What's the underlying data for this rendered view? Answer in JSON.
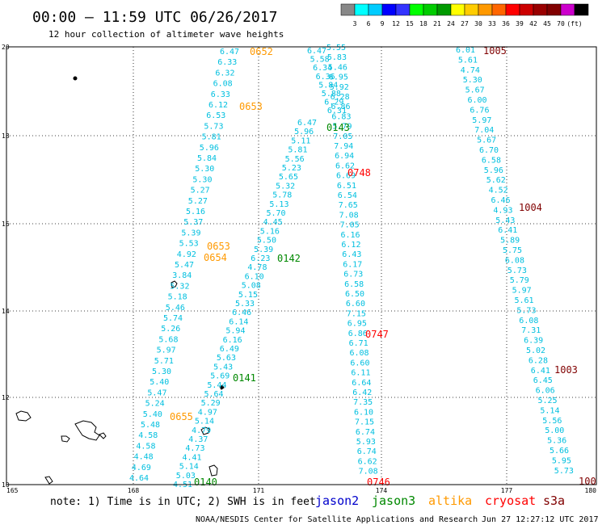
{
  "title": "00:00 – 11:59 UTC 06/26/2017",
  "subtitle": "12 hour collection of altimeter wave heights",
  "colorbar": {
    "colors": [
      "#888888",
      "#00ffff",
      "#00ccff",
      "#0000ff",
      "#3333ff",
      "#00ff00",
      "#00cc00",
      "#009900",
      "#ffff00",
      "#ffcc00",
      "#ff9900",
      "#ff6600",
      "#ff0000",
      "#cc0000",
      "#990000",
      "#800000",
      "#cc00cc",
      "#000000"
    ],
    "labels": [
      "3",
      "6",
      "9",
      "12",
      "15",
      "18",
      "21",
      "24",
      "27",
      "30",
      "33",
      "36",
      "39",
      "42",
      "45",
      "70",
      "(ft)"
    ]
  },
  "lat_ticks": [
    "20",
    "18",
    "16",
    "14",
    "12",
    "10"
  ],
  "lon_ticks": [
    "165",
    "168",
    "171",
    "174",
    "177",
    "180"
  ],
  "note": "note: 1) Time is in UTC; 2) SWH is in feet",
  "legend": [
    {
      "name": "jason2",
      "color": "#0000cc"
    },
    {
      "name": "jason3",
      "color": "#008000"
    },
    {
      "name": "altika",
      "color": "#ff9900"
    },
    {
      "name": "cryosat",
      "color": "#ff0000"
    },
    {
      "name": "s3a",
      "color": "#800000"
    }
  ],
  "footer_left": "NOAA/NESDIS Center for Satellite Applications and Research",
  "footer_right": "Jun 27 12:27:12 UTC 2017",
  "time_labels": [
    {
      "text": "0652",
      "sat": "altika"
    },
    {
      "text": "0653",
      "sat": "altika"
    },
    {
      "text": "0653",
      "sat": "altika"
    },
    {
      "text": "0654",
      "sat": "altika"
    },
    {
      "text": "0655",
      "sat": "altika"
    },
    {
      "text": "0143",
      "sat": "jason3"
    },
    {
      "text": "0142",
      "sat": "jason3"
    },
    {
      "text": "0141",
      "sat": "jason3"
    },
    {
      "text": "0140",
      "sat": "jason3"
    },
    {
      "text": "0748",
      "sat": "cryosat"
    },
    {
      "text": "0747",
      "sat": "cryosat"
    },
    {
      "text": "0746",
      "sat": "cryosat"
    },
    {
      "text": "1005",
      "sat": "s3a"
    },
    {
      "text": "1004",
      "sat": "s3a"
    },
    {
      "text": "1003",
      "sat": "s3a"
    },
    {
      "text": "100",
      "sat": "s3a"
    }
  ],
  "tracks": [
    {
      "name": "altika-track-1",
      "values": [
        "6.47",
        "6.33",
        "6.32",
        "6.08",
        "6.33",
        "6.12",
        "6.53",
        "5.73",
        "5.81",
        "5.96",
        "5.84",
        "5.30",
        "5.30",
        "5.27",
        "5.27",
        "5.16",
        "5.37",
        "5.39",
        "5.53",
        "4.92",
        "5.47",
        "3.84",
        "5.32",
        "5.18",
        "5.46",
        "5.74",
        "5.26",
        "5.68",
        "5.97",
        "5.71",
        "5.30",
        "5.40",
        "5.47",
        "5.24",
        "5.40",
        "5.48",
        "4.58",
        "4.58",
        "4.48",
        "4.69",
        "4.64"
      ]
    },
    {
      "name": "jason3-track-1",
      "values": [
        "6.47",
        "5.96",
        "5.11",
        "5.81",
        "5.56",
        "5.23",
        "5.65",
        "5.32",
        "5.78",
        "5.13",
        "5.70",
        "4.45",
        "5.16",
        "5.50",
        "5.39",
        "6.23",
        "4.78",
        "6.10",
        "5.08",
        "5.15",
        "5.33",
        "6.46",
        "6.14",
        "5.94",
        "6.16",
        "6.49",
        "5.63",
        "5.43",
        "5.69",
        "5.44",
        "5.64",
        "5.29",
        "4.97",
        "5.14",
        "4.79",
        "4.37",
        "4.73",
        "4.41",
        "5.14",
        "5.03",
        "4.51"
      ]
    },
    {
      "name": "cryosat-track-1",
      "values": [
        "5.55",
        "5.83",
        "5.46",
        "6.95",
        "5.92",
        "6.28",
        "6.86",
        "6.83",
        "5.79",
        "7.05",
        "7.94",
        "6.94",
        "6.62",
        "6.69",
        "6.51",
        "6.54",
        "7.65",
        "7.08",
        "7.05",
        "6.16",
        "6.12",
        "6.43",
        "6.17",
        "6.73",
        "6.58",
        "6.50",
        "6.60",
        "7.15",
        "6.95",
        "6.86",
        "6.71",
        "6.08",
        "6.60",
        "6.11",
        "6.64",
        "6.42",
        "7.35",
        "6.10",
        "7.15",
        "6.74",
        "5.93",
        "6.74",
        "6.62",
        "7.08"
      ]
    },
    {
      "name": "altika-track-2",
      "values": [
        "6.47",
        "5.58",
        "6.34",
        "6.36",
        "5.84",
        "5.88",
        "6.29",
        "6.31"
      ]
    },
    {
      "name": "s3a-track-1",
      "values": [
        "6.01",
        "5.61",
        "4.74",
        "5.30",
        "5.67",
        "6.00",
        "6.76",
        "5.97",
        "7.04",
        "5.67",
        "6.70",
        "6.58",
        "5.96",
        "5.62",
        "4.52",
        "6.46",
        "4.93",
        "5.43",
        "6.41",
        "5.89",
        "5.75",
        "6.08",
        "5.73",
        "5.79",
        "5.97",
        "5.61",
        "5.73",
        "6.08",
        "7.31",
        "6.39",
        "5.02",
        "6.28",
        "6.41",
        "6.45",
        "6.06",
        "5.25",
        "5.14",
        "5.56",
        "5.00",
        "5.36",
        "5.66",
        "5.95",
        "5.73"
      ]
    }
  ]
}
